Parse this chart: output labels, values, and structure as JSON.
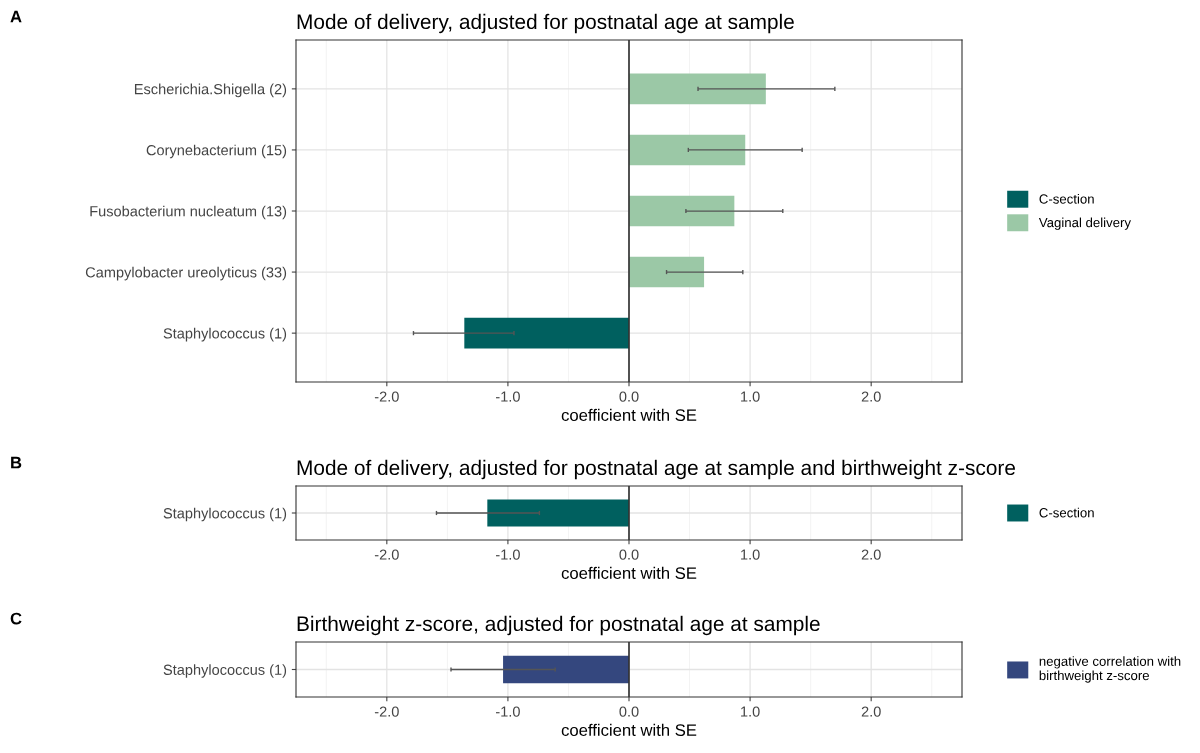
{
  "chart_data": [
    {
      "type": "bar",
      "orientation": "horizontal",
      "stacked": true,
      "title": "Mode of delivery, adjusted for postnatal age at sample",
      "xlabel": "coefficient with SE",
      "annotations": [
        "A"
      ],
      "categories": [
        "Escherichia.Shigella (2)",
        "Corynebacterium (15)",
        "Fusobacterium nucleatum (13)",
        "Campylobacter ureolyticus (33)",
        "Staphylococcus (1)"
      ],
      "series": [
        {
          "name": "C-section",
          "color": "#00605f",
          "values": [
            null,
            null,
            null,
            null,
            -1.36
          ],
          "errors": [
            null,
            null,
            null,
            null,
            [
              -1.78,
              -0.95
            ]
          ]
        },
        {
          "name": "Vaginal delivery",
          "color": "#9bc8a6",
          "values": [
            1.13,
            0.96,
            0.87,
            0.62,
            null
          ],
          "errors": [
            [
              0.57,
              1.7
            ],
            [
              0.49,
              1.43
            ],
            [
              0.47,
              1.27
            ],
            [
              0.31,
              0.94
            ],
            null
          ]
        }
      ],
      "xlim": [
        -2.75,
        2.75
      ],
      "xticks": [
        {
          "value": -2,
          "label": "-2.0"
        },
        {
          "value": -1,
          "label": "-1.0"
        },
        {
          "value": 0,
          "label": "0.0"
        },
        {
          "value": 1,
          "label": "1.0"
        },
        {
          "value": 2,
          "label": "2.0"
        }
      ],
      "ref_lines": [
        {
          "axis": "x",
          "value": 0,
          "color": "#333333"
        }
      ],
      "grid": true,
      "legend": "right"
    },
    {
      "type": "bar",
      "orientation": "horizontal",
      "stacked": true,
      "title": "Mode of delivery, adjusted for postnatal age at sample and birthweight z-score",
      "xlabel": "coefficient with SE",
      "annotations": [
        "B"
      ],
      "categories": [
        "Staphylococcus (1)"
      ],
      "series": [
        {
          "name": "C-section",
          "color": "#00605f",
          "values": [
            -1.17
          ],
          "errors": [
            [
              -1.59,
              -0.74
            ]
          ]
        }
      ],
      "xlim": [
        -2.75,
        2.75
      ],
      "xticks": [
        {
          "value": -2,
          "label": "-2.0"
        },
        {
          "value": -1,
          "label": "-1.0"
        },
        {
          "value": 0,
          "label": "0.0"
        },
        {
          "value": 1,
          "label": "1.0"
        },
        {
          "value": 2,
          "label": "2.0"
        }
      ],
      "ref_lines": [
        {
          "axis": "x",
          "value": 0,
          "color": "#333333"
        }
      ],
      "grid": true,
      "legend": "right"
    },
    {
      "type": "bar",
      "orientation": "horizontal",
      "stacked": true,
      "title": "Birthweight z-score, adjusted for postnatal age at sample",
      "xlabel": "coefficient with SE",
      "annotations": [
        "C"
      ],
      "categories": [
        "Staphylococcus (1)"
      ],
      "series": [
        {
          "name": "negative correlation with\nbirthweight z-score",
          "color": "#34477e",
          "values": [
            -1.04
          ],
          "errors": [
            [
              -1.47,
              -0.61
            ]
          ]
        }
      ],
      "xlim": [
        -2.75,
        2.75
      ],
      "xticks": [
        {
          "value": -2,
          "label": "-2.0"
        },
        {
          "value": -1,
          "label": "-1.0"
        },
        {
          "value": 0,
          "label": "0.0"
        },
        {
          "value": 1,
          "label": "1.0"
        },
        {
          "value": 2,
          "label": "2.0"
        }
      ],
      "ref_lines": [
        {
          "axis": "x",
          "value": 0,
          "color": "#333333"
        }
      ],
      "grid": true,
      "legend": "right"
    }
  ]
}
